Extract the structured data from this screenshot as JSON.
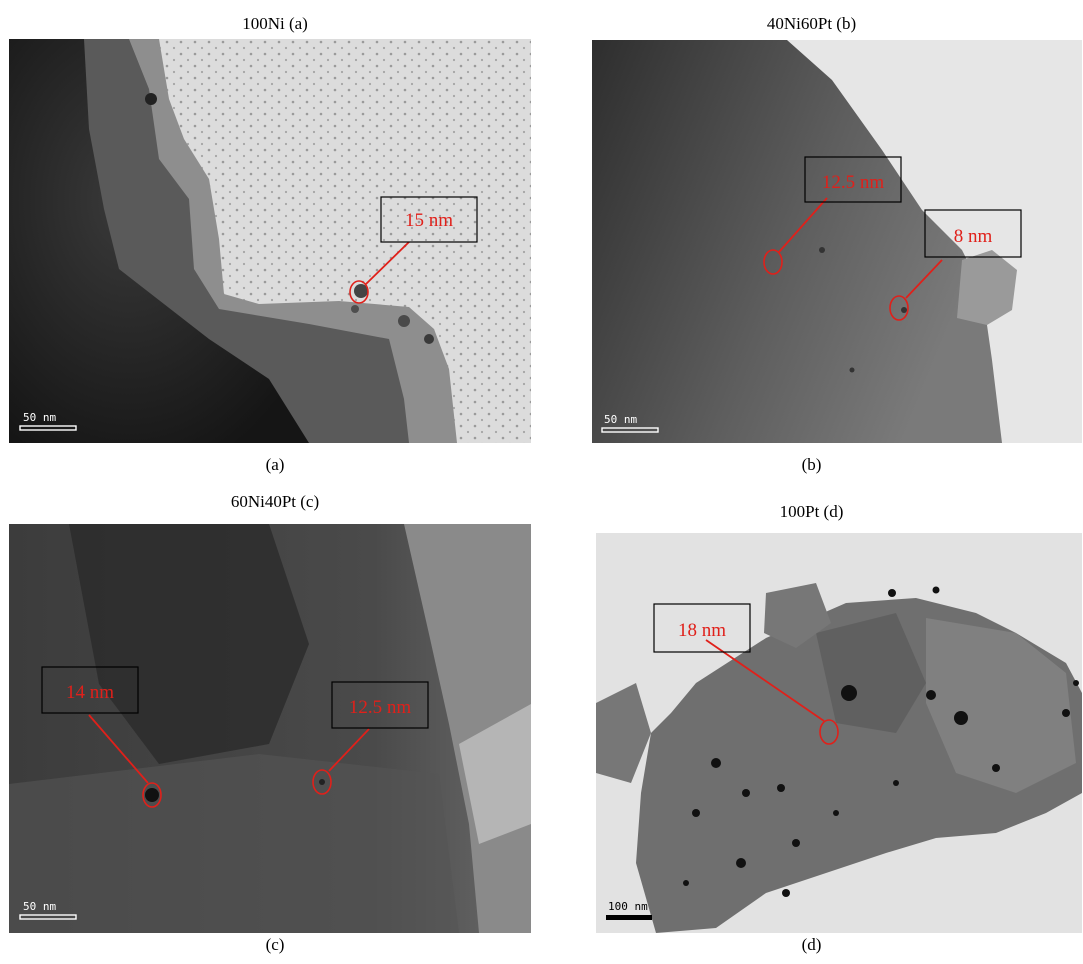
{
  "panels": {
    "a": {
      "title": "100Ni (a)",
      "caption": "(a)",
      "scale_bar": "50 nm",
      "annotations": [
        "15 nm"
      ]
    },
    "b": {
      "title": "40Ni60Pt (b)",
      "caption": "(b)",
      "scale_bar": "50 nm",
      "annotations": [
        "12.5 nm",
        "8 nm"
      ]
    },
    "c": {
      "title": "60Ni40Pt (c)",
      "caption": "(c)",
      "scale_bar": "50 nm",
      "annotations": [
        "14 nm",
        "12.5 nm"
      ]
    },
    "d": {
      "title": "100Pt (d)",
      "caption": "(d)",
      "scale_bar": "100 nm",
      "annotations": [
        "18 nm"
      ]
    }
  },
  "colors": {
    "annotation": "#e0201a",
    "callout_border": "#000000",
    "scale_bar": "#ffffff"
  }
}
